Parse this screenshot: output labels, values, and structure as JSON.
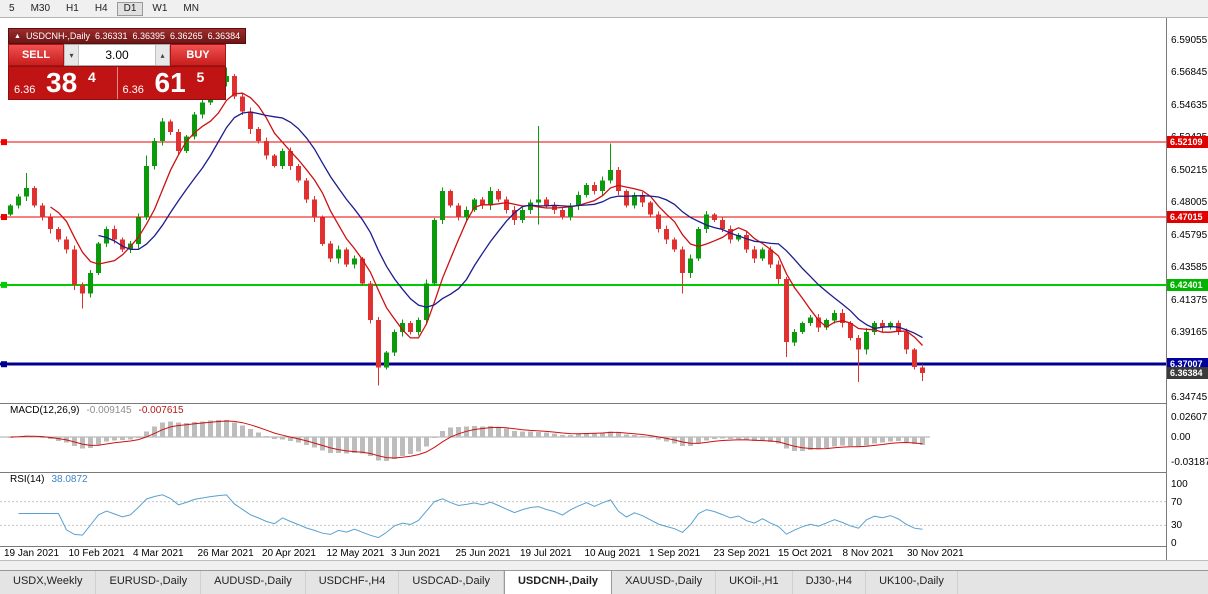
{
  "toolbar": {
    "timeframes": [
      "5",
      "M30",
      "H1",
      "H4",
      "D1",
      "W1",
      "MN"
    ],
    "active": "D1"
  },
  "chart_header": {
    "title": "USDCNH-,Daily",
    "open": "6.36331",
    "high": "6.36395",
    "low": "6.36265",
    "close": "6.36384"
  },
  "trade_panel": {
    "sell_label": "SELL",
    "buy_label": "BUY",
    "volume": "3.00",
    "sell_price_small": "6.36",
    "sell_price_big": "38",
    "sell_price_sup": "4",
    "buy_price_small": "6.36",
    "buy_price_big": "61",
    "buy_price_sup": "5"
  },
  "price_axis": {
    "tags": [
      {
        "label": "6.52109",
        "price": 6.52109,
        "color": "#e00000"
      },
      {
        "label": "6.47015",
        "price": 6.47015,
        "color": "#e00000"
      },
      {
        "label": "6.42401",
        "price": 6.42401,
        "color": "#00b400"
      },
      {
        "label": "6.37007",
        "price": 6.37007,
        "color": "#0000a0"
      },
      {
        "label": "6.36384",
        "price": 6.36384,
        "color": "#3a3a3a"
      }
    ]
  },
  "macd_panel": {
    "label": "MACD(12,26,9)",
    "value1": "-0.009145",
    "value2": "-0.007615",
    "axis": [
      "0.02607",
      "0.00",
      "-0.03187"
    ]
  },
  "rsi_panel": {
    "label": "RSI(14)",
    "value": "38.0872",
    "axis": [
      "100",
      "70",
      "30",
      "0"
    ]
  },
  "date_axis": {
    "labels": [
      "19 Jan 2021",
      "10 Feb 2021",
      "4 Mar 2021",
      "26 Mar 2021",
      "20 Apr 2021",
      "12 May 2021",
      "3 Jun 2021",
      "25 Jun 2021",
      "19 Jul 2021",
      "10 Aug 2021",
      "1 Sep 2021",
      "23 Sep 2021",
      "15 Oct 2021",
      "8 Nov 2021",
      "30 Nov 2021"
    ]
  },
  "tabs": {
    "items": [
      "USDX,Weekly",
      "EURUSD-,Daily",
      "AUDUSD-,Daily",
      "USDCHF-,H4",
      "USDCAD-,Daily",
      "USDCNH-,Daily",
      "XAUUSD-,Daily",
      "UKOil-,H1",
      "DJ30-,H4",
      "UK100-,Daily"
    ],
    "active": "USDCNH-,Daily"
  },
  "chart_data": {
    "type": "candlestick",
    "title": "USDCNH-,Daily",
    "symbol": "USDCNH-",
    "timeframe": "Daily",
    "ylim": [
      6.3437,
      6.6055
    ],
    "y_ticks": [
      "6.59055",
      "6.56845",
      "6.54635",
      "6.52425",
      "6.50215",
      "6.48005",
      "6.45795",
      "6.43585",
      "6.41375",
      "6.39165",
      "6.36955",
      "6.34745"
    ],
    "x_labels": [
      "19 Jan 2021",
      "10 Feb 2021",
      "4 Mar 2021",
      "26 Mar 2021",
      "20 Apr 2021",
      "12 May 2021",
      "3 Jun 2021",
      "25 Jun 2021",
      "19 Jul 2021",
      "10 Aug 2021",
      "1 Sep 2021",
      "23 Sep 2021",
      "15 Oct 2021",
      "8 Nov 2021",
      "30 Nov 2021"
    ],
    "first_open": 6.472,
    "closes": [
      6.478,
      6.484,
      6.49,
      6.478,
      6.47,
      6.462,
      6.455,
      6.448,
      6.424,
      6.418,
      6.432,
      6.452,
      6.462,
      6.455,
      6.448,
      6.452,
      6.47,
      6.505,
      6.522,
      6.535,
      6.528,
      6.515,
      6.525,
      6.54,
      6.548,
      6.556,
      6.562,
      6.566,
      6.552,
      6.542,
      6.53,
      6.522,
      6.512,
      6.505,
      6.515,
      6.505,
      6.495,
      6.482,
      6.47,
      6.452,
      6.442,
      6.448,
      6.438,
      6.442,
      6.425,
      6.4,
      6.368,
      6.378,
      6.392,
      6.398,
      6.392,
      6.4,
      6.425,
      6.468,
      6.488,
      6.478,
      6.47,
      6.475,
      6.482,
      6.478,
      6.488,
      6.482,
      6.475,
      6.468,
      6.475,
      6.48,
      6.482,
      6.478,
      6.475,
      6.47,
      6.478,
      6.485,
      6.492,
      6.488,
      6.495,
      6.502,
      6.488,
      6.478,
      6.485,
      6.48,
      6.472,
      6.462,
      6.455,
      6.448,
      6.432,
      6.442,
      6.462,
      6.472,
      6.468,
      6.462,
      6.455,
      6.458,
      6.448,
      6.442,
      6.448,
      6.438,
      6.428,
      6.385,
      6.392,
      6.398,
      6.402,
      6.395,
      6.4,
      6.405,
      6.398,
      6.388,
      6.38,
      6.392,
      6.398,
      6.395,
      6.398,
      6.392,
      6.38,
      6.368,
      6.364
    ],
    "wick_overrides": {
      "2": {
        "h": 6.5
      },
      "9": {
        "l": 6.408
      },
      "17": {
        "h": 6.512
      },
      "27": {
        "h": 6.572
      },
      "46": {
        "l": 6.3556
      },
      "66": {
        "h": 6.532,
        "l": 6.465
      },
      "75": {
        "h": 6.52
      },
      "84": {
        "l": 6.418
      },
      "97": {
        "l": 6.375
      },
      "106": {
        "l": 6.358
      },
      "114": {
        "l": 6.3585
      }
    },
    "hlines": [
      {
        "price": 6.52109,
        "color": "#ee0000",
        "w": 1
      },
      {
        "price": 6.47015,
        "color": "#ee0000",
        "w": 1
      },
      {
        "price": 6.42401,
        "color": "#00cc00",
        "w": 2
      },
      {
        "price": 6.37007,
        "color": "#000090",
        "w": 3
      }
    ],
    "up_color": "#0b9a0b",
    "down_color": "#e03030",
    "ma_fast_color": "#cc1111",
    "ma_slow_color": "#1d1d8e",
    "macd": {
      "fast": 12,
      "slow": 26,
      "signal": 9,
      "current": -0.009145,
      "signal_current": -0.007615,
      "axis_max": 0.02607,
      "axis_min": -0.03187,
      "hist_color": "#bdbdbd",
      "signal_color": "#cc1111"
    },
    "rsi": {
      "period": 14,
      "current": 38.0872,
      "levels": [
        70,
        30
      ],
      "color": "#5aa0d0"
    },
    "legend_position": "none",
    "grid": false
  }
}
